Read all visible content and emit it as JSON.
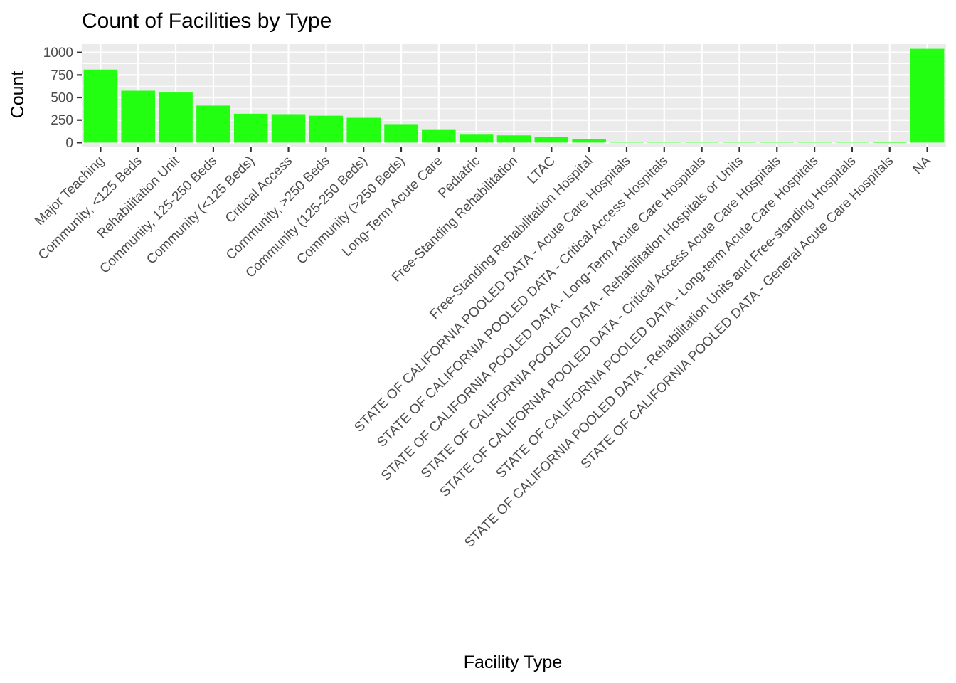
{
  "chart_data": {
    "type": "bar",
    "title": "Count of Facilities by Type",
    "xlabel": "Facility Type",
    "ylabel": "Count",
    "ylim": [
      -52,
      1092
    ],
    "yticks": [
      0,
      250,
      500,
      750,
      1000
    ],
    "yticklabels": [
      "0",
      "250",
      "500",
      "750",
      "1000"
    ],
    "grid": true,
    "legend": "none",
    "bar_color": "#22ff11",
    "panel_color": "#ebebeb",
    "categories": [
      "Major Teaching",
      "Community, <125 Beds",
      "Rehabilitation Unit",
      "Community, 125-250 Beds",
      "Community (<125 Beds)",
      "Critical Access",
      "Community, >250 Beds",
      "Community (125-250 Beds)",
      "Community (>250 Beds)",
      "Long-Term Acute Care",
      "Pediatric",
      "Free-Standing Rehabilitation",
      "LTAC",
      "Free-Standing Rehabilitation Hospital",
      "STATE OF CALIFORNIA POOLED DATA - Acute Care Hospitals",
      "STATE OF CALIFORNIA POOLED DATA - Critical Access Hospitals",
      "STATE OF CALIFORNIA POOLED DATA - Long-Term Acute Care Hospitals",
      "STATE OF CALIFORNIA POOLED DATA - Rehabilitation Hospitals or Units",
      "STATE OF CALIFORNIA POOLED DATA - Critical Access Acute Care Hospitals",
      "STATE OF CALIFORNIA POOLED DATA - Long-term Acute Care Hospitals",
      "STATE OF CALIFORNIA POOLED DATA - Rehabilitation Units and Free-standing Hospitals",
      "STATE OF CALIFORNIA POOLED DATA - General Acute Care Hospitals",
      "NA"
    ],
    "values": [
      810,
      575,
      555,
      410,
      320,
      315,
      298,
      275,
      205,
      140,
      88,
      80,
      65,
      35,
      10,
      10,
      10,
      10,
      5,
      5,
      5,
      2,
      1040
    ]
  }
}
